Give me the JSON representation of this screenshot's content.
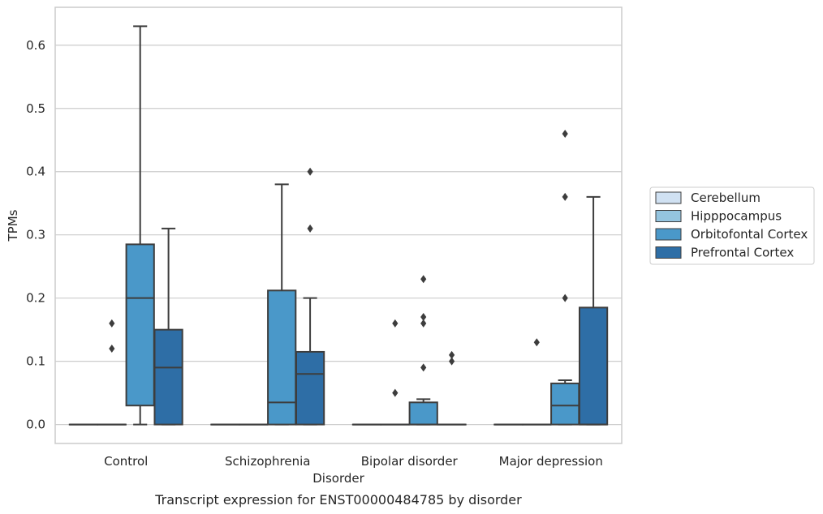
{
  "chart_data": {
    "type": "box",
    "caption": "Transcript expression for ENST00000484785 by disorder",
    "xlabel": "Disorder",
    "ylabel": "TPMs",
    "ylim": [
      -0.03,
      0.66
    ],
    "yticks": [
      0.0,
      0.1,
      0.2,
      0.3,
      0.4,
      0.5,
      0.6
    ],
    "ytick_labels": [
      "0.0",
      "0.1",
      "0.2",
      "0.3",
      "0.4",
      "0.5",
      "0.6"
    ],
    "grid": "horizontal",
    "legend_position": "right",
    "categories": [
      "Control",
      "Schizophrenia",
      "Bipolar disorder",
      "Major depression"
    ],
    "series": [
      {
        "name": "Cerebellum",
        "color": "#d0e1f2",
        "boxes": [
          {
            "q1": 0,
            "median": 0,
            "q3": 0,
            "whisker_low": 0,
            "whisker_high": 0,
            "outliers": []
          },
          {
            "q1": 0,
            "median": 0,
            "q3": 0,
            "whisker_low": 0,
            "whisker_high": 0,
            "outliers": []
          },
          {
            "q1": 0,
            "median": 0,
            "q3": 0,
            "whisker_low": 0,
            "whisker_high": 0,
            "outliers": []
          },
          {
            "q1": 0,
            "median": 0,
            "q3": 0,
            "whisker_low": 0,
            "whisker_high": 0,
            "outliers": []
          }
        ]
      },
      {
        "name": "Hipppocampus",
        "color": "#94c4df",
        "boxes": [
          {
            "q1": 0,
            "median": 0,
            "q3": 0,
            "whisker_low": 0,
            "whisker_high": 0,
            "outliers": [
              0.12,
              0.16
            ]
          },
          {
            "q1": 0,
            "median": 0,
            "q3": 0,
            "whisker_low": 0,
            "whisker_high": 0,
            "outliers": []
          },
          {
            "q1": 0,
            "median": 0,
            "q3": 0,
            "whisker_low": 0,
            "whisker_high": 0,
            "outliers": [
              0.05,
              0.16
            ]
          },
          {
            "q1": 0,
            "median": 0,
            "q3": 0,
            "whisker_low": 0,
            "whisker_high": 0,
            "outliers": [
              0.13
            ]
          }
        ]
      },
      {
        "name": "Orbitofontal Cortex",
        "color": "#4a98c9",
        "boxes": [
          {
            "q1": 0.03,
            "median": 0.2,
            "q3": 0.285,
            "whisker_low": 0,
            "whisker_high": 0.63,
            "outliers": []
          },
          {
            "q1": 0,
            "median": 0.035,
            "q3": 0.212,
            "whisker_low": 0,
            "whisker_high": 0.38,
            "outliers": []
          },
          {
            "q1": 0,
            "median": 0,
            "q3": 0.035,
            "whisker_low": 0,
            "whisker_high": 0.04,
            "outliers": [
              0.09,
              0.16,
              0.17,
              0.23
            ]
          },
          {
            "q1": 0,
            "median": 0.03,
            "q3": 0.065,
            "whisker_low": 0,
            "whisker_high": 0.07,
            "outliers": [
              0.2,
              0.36,
              0.46
            ]
          }
        ]
      },
      {
        "name": "Prefrontal Cortex",
        "color": "#2e6ea6",
        "boxes": [
          {
            "q1": 0,
            "median": 0.09,
            "q3": 0.15,
            "whisker_low": 0,
            "whisker_high": 0.31,
            "outliers": []
          },
          {
            "q1": 0,
            "median": 0.08,
            "q3": 0.115,
            "whisker_low": 0,
            "whisker_high": 0.2,
            "outliers": [
              0.31,
              0.4
            ]
          },
          {
            "q1": 0,
            "median": 0,
            "q3": 0,
            "whisker_low": 0,
            "whisker_high": 0,
            "outliers": [
              0.1,
              0.11
            ]
          },
          {
            "q1": 0,
            "median": 0,
            "q3": 0.185,
            "whisker_low": 0,
            "whisker_high": 0.36,
            "outliers": []
          }
        ]
      }
    ]
  }
}
